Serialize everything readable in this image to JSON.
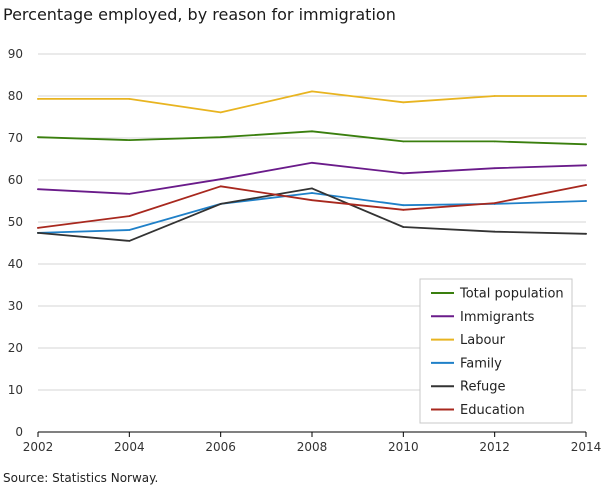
{
  "chart_data": {
    "type": "line",
    "title": "Percentage employed, by reason for immigration",
    "source": "Source: Statistics Norway.",
    "xlabel": "",
    "ylabel": "",
    "x": [
      2002,
      2004,
      2006,
      2008,
      2010,
      2012,
      2014
    ],
    "xlim": [
      2002,
      2014
    ],
    "ylim": [
      0,
      90
    ],
    "yticks": [
      0,
      10,
      20,
      30,
      40,
      50,
      60,
      70,
      80,
      90
    ],
    "grid": true,
    "legend_position": "bottom-right",
    "series": [
      {
        "name": "Total population",
        "color": "#3a7f0e",
        "values": [
          70.2,
          69.5,
          70.2,
          71.6,
          69.2,
          69.2,
          68.5
        ]
      },
      {
        "name": "Immigrants",
        "color": "#6a1b8a",
        "values": [
          57.8,
          56.7,
          60.2,
          64.1,
          61.6,
          62.8,
          63.5
        ]
      },
      {
        "name": "Labour",
        "color": "#e8b420",
        "values": [
          79.3,
          79.3,
          76.1,
          81.1,
          78.5,
          80.0,
          80.0
        ]
      },
      {
        "name": "Family",
        "color": "#1f80c8",
        "values": [
          47.4,
          48.1,
          54.3,
          56.9,
          54.0,
          54.3,
          55.0
        ]
      },
      {
        "name": "Refuge",
        "color": "#333333",
        "values": [
          47.4,
          45.5,
          54.3,
          58.0,
          48.8,
          47.7,
          47.2
        ]
      },
      {
        "name": "Education",
        "color": "#a8281e",
        "values": [
          48.6,
          51.4,
          58.5,
          55.2,
          52.9,
          54.5,
          58.8
        ]
      }
    ]
  }
}
